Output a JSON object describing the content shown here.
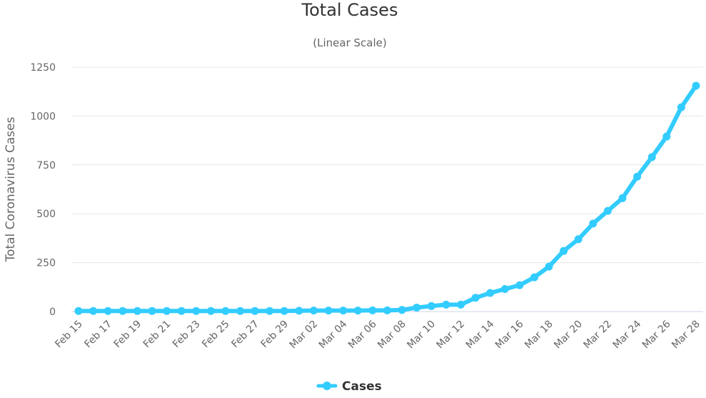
{
  "chart_data": {
    "type": "line",
    "title": "Total Cases",
    "subtitle": "(Linear Scale)",
    "ylabel": "Total Coronavirus Cases",
    "xlabel": "",
    "ylim": [
      0,
      1250
    ],
    "yticks": [
      "0",
      "250",
      "500",
      "750",
      "1000",
      "1250"
    ],
    "ytick_values": [
      0,
      250,
      500,
      750,
      1000,
      1250
    ],
    "x": [
      "Feb 15",
      "Feb 16",
      "Feb 17",
      "Feb 18",
      "Feb 19",
      "Feb 20",
      "Feb 21",
      "Feb 22",
      "Feb 23",
      "Feb 24",
      "Feb 25",
      "Feb 26",
      "Feb 27",
      "Feb 28",
      "Feb 29",
      "Mar 01",
      "Mar 02",
      "Mar 03",
      "Mar 04",
      "Mar 05",
      "Mar 06",
      "Mar 07",
      "Mar 08",
      "Mar 09",
      "Mar 10",
      "Mar 11",
      "Mar 12",
      "Mar 13",
      "Mar 14",
      "Mar 15",
      "Mar 16",
      "Mar 17",
      "Mar 18",
      "Mar 19",
      "Mar 20",
      "Mar 21",
      "Mar 22",
      "Mar 23",
      "Mar 24",
      "Mar 25",
      "Mar 26",
      "Mar 27",
      "Mar 28"
    ],
    "xtick_labels": [
      "Feb 15",
      "Feb 17",
      "Feb 19",
      "Feb 21",
      "Feb 23",
      "Feb 25",
      "Feb 27",
      "Feb 29",
      "Mar 02",
      "Mar 04",
      "Mar 06",
      "Mar 08",
      "Mar 10",
      "Mar 12",
      "Mar 14",
      "Mar 16",
      "Mar 18",
      "Mar 20",
      "Mar 22",
      "Mar 24",
      "Mar 26",
      "Mar 28"
    ],
    "series": [
      {
        "name": "Cases",
        "color": "#33ccff",
        "values": [
          3,
          3,
          3,
          3,
          3,
          3,
          3,
          3,
          3,
          3,
          3,
          3,
          3,
          3,
          3,
          4,
          5,
          5,
          5,
          5,
          6,
          6,
          8,
          20,
          28,
          35,
          35,
          70,
          95,
          115,
          135,
          175,
          230,
          310,
          370,
          450,
          515,
          580,
          690,
          790,
          895,
          1045,
          1155
        ]
      }
    ],
    "legend": {
      "position": "bottom-center",
      "label": "Cases"
    },
    "grid": true
  }
}
